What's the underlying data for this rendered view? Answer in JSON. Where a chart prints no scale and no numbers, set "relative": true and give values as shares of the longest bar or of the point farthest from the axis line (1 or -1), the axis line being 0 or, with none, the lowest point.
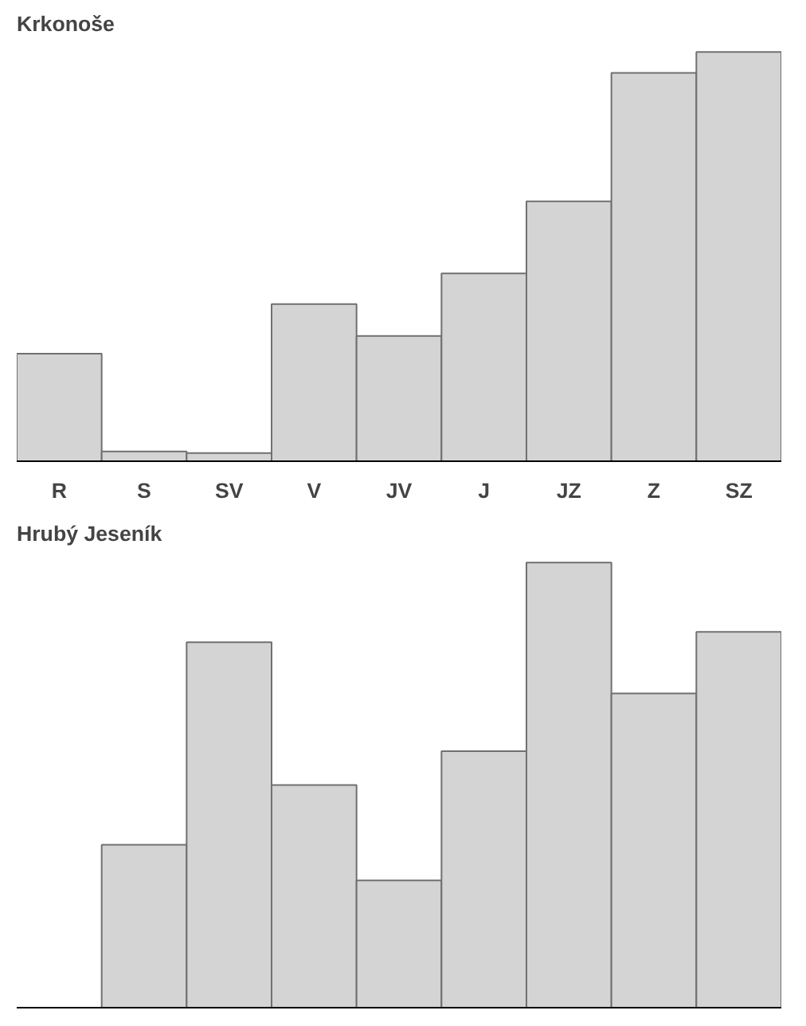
{
  "chart_data": [
    {
      "type": "bar",
      "title": "Krkonoše",
      "relative": true,
      "color": "#d4d4d4",
      "categories": [
        "R",
        "S",
        "SV",
        "V",
        "JV",
        "J",
        "JZ",
        "Z",
        "SZ"
      ],
      "values": [
        0.263,
        0.024,
        0.02,
        0.384,
        0.306,
        0.459,
        0.635,
        0.949,
        1
      ]
    },
    {
      "type": "bar",
      "title": "Hrubý Jeseník",
      "relative": true,
      "color": "#d4d4d4",
      "categories": [
        null,
        null,
        null,
        null,
        null,
        null,
        null,
        null,
        null
      ],
      "values": [
        null,
        0.366,
        0.821,
        0.5,
        0.286,
        0.576,
        1,
        0.706,
        0.844
      ]
    }
  ]
}
